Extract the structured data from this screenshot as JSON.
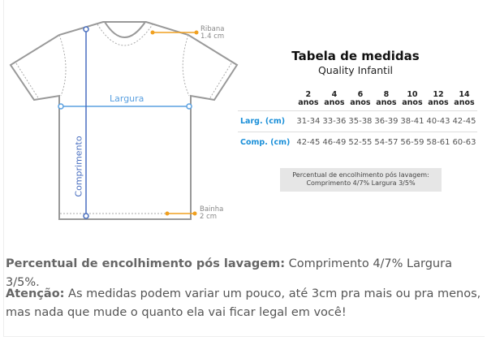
{
  "diagram": {
    "ribana_label": "Ribana",
    "ribana_value": "1.4 cm",
    "bainha_label": "Bainha",
    "bainha_value": "2 cm",
    "width_label": "Largura",
    "length_label": "Comprimento",
    "colors": {
      "outline": "#999999",
      "width_line": "#5aa0e0",
      "length_line": "#4a6fc0",
      "accent": "#f0a020"
    }
  },
  "table": {
    "title": "Tabela de medidas",
    "subtitle": "Quality Infantil",
    "headers": [
      {
        "n": "2",
        "u": "anos"
      },
      {
        "n": "4",
        "u": "anos"
      },
      {
        "n": "6",
        "u": "anos"
      },
      {
        "n": "8",
        "u": "anos"
      },
      {
        "n": "10",
        "u": "anos"
      },
      {
        "n": "12",
        "u": "anos"
      },
      {
        "n": "14",
        "u": "anos"
      }
    ],
    "rows": [
      {
        "label": "Larg. (cm)",
        "values": [
          "31-34",
          "33-36",
          "35-38",
          "36-39",
          "38-41",
          "40-43",
          "42-45"
        ]
      },
      {
        "label": "Comp. (cm)",
        "values": [
          "42-45",
          "46-49",
          "52-55",
          "54-57",
          "56-59",
          "58-61",
          "60-63"
        ]
      }
    ],
    "note_line1": "Percentual de encolhimento pós lavagem:",
    "note_line2": "Comprimento 4/7% Largura 3/5%"
  },
  "text": {
    "p1_bold": "Percentual de encolhimento pós lavagem:",
    "p1": " Comprimento 4/7% Largura 3/5%.",
    "p2_bold": "Atenção:",
    "p2": " As medidas podem variar um pouco, até 3cm pra mais ou pra menos, mas nada que mude o quanto ela vai ficar legal em você!"
  }
}
